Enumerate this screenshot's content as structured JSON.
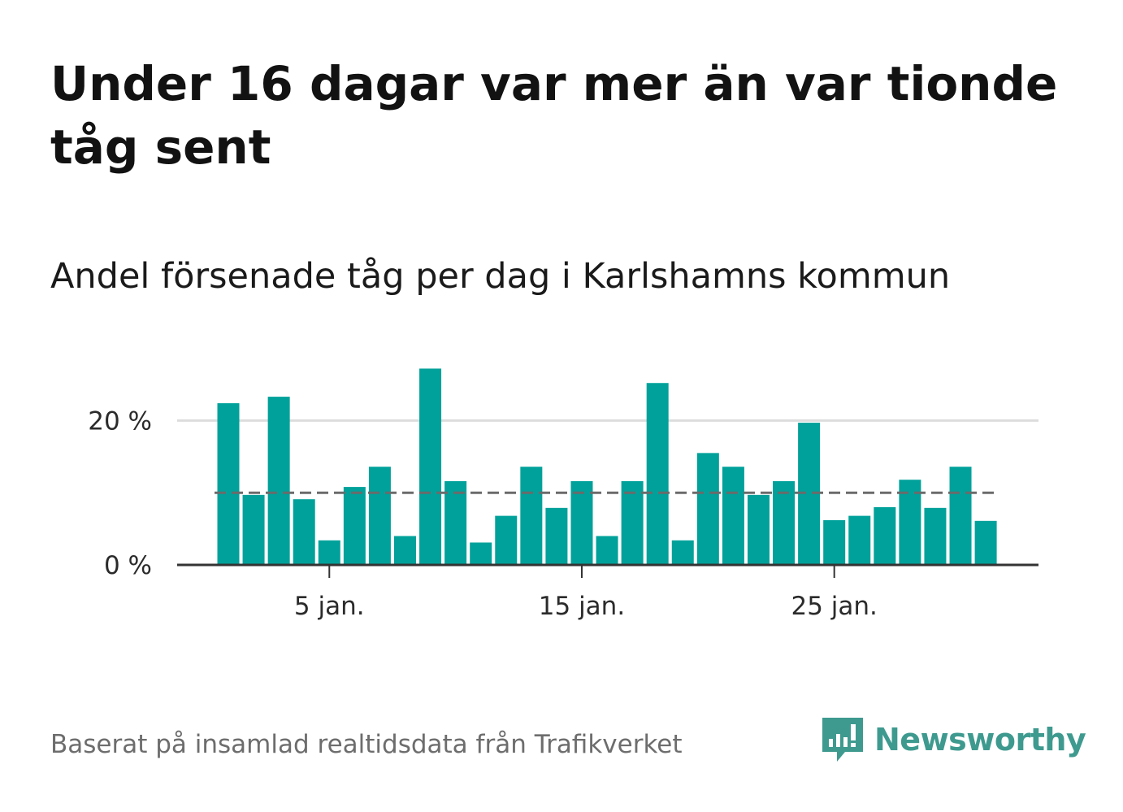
{
  "title": "Under 16 dagar var mer än var tionde tåg sent",
  "subtitle": "Andel försenade tåg per dag i Karlshamns kommun",
  "source": "Baserat på insamlad realtidsdata från Trafikverket",
  "brand": {
    "name": "Newsworthy",
    "color": "#3e9a8f"
  },
  "colors": {
    "bar": "#00a19a",
    "reference_line": "#6b6b6b",
    "grid": "#dddddd",
    "axis": "#333333"
  },
  "chart_data": {
    "type": "bar",
    "x_unit": "day of January",
    "x": [
      1,
      2,
      3,
      4,
      5,
      6,
      7,
      8,
      9,
      10,
      11,
      12,
      13,
      14,
      15,
      16,
      17,
      18,
      19,
      20,
      21,
      22,
      23,
      24,
      25,
      26,
      27,
      28,
      29,
      30,
      31
    ],
    "values": [
      22.4,
      9.7,
      23.3,
      9.1,
      3.4,
      10.8,
      13.6,
      4.0,
      27.2,
      11.6,
      3.1,
      6.8,
      13.6,
      7.9,
      11.6,
      4.0,
      11.6,
      25.2,
      3.4,
      15.5,
      13.6,
      9.7,
      11.6,
      19.7,
      6.2,
      6.8,
      8.0,
      11.8,
      7.9,
      13.6,
      6.1
    ],
    "y_unit": "%",
    "ylim": [
      0,
      28
    ],
    "y_ticks": [
      0,
      20
    ],
    "y_tick_labels": [
      "0 %",
      "20 %"
    ],
    "x_ticks": [
      5,
      15,
      25
    ],
    "x_tick_labels": [
      "5 jan.",
      "15 jan.",
      "25 jan."
    ],
    "reference_line": {
      "value": 10,
      "style": "dashed"
    },
    "grid": true,
    "legend": "none"
  }
}
